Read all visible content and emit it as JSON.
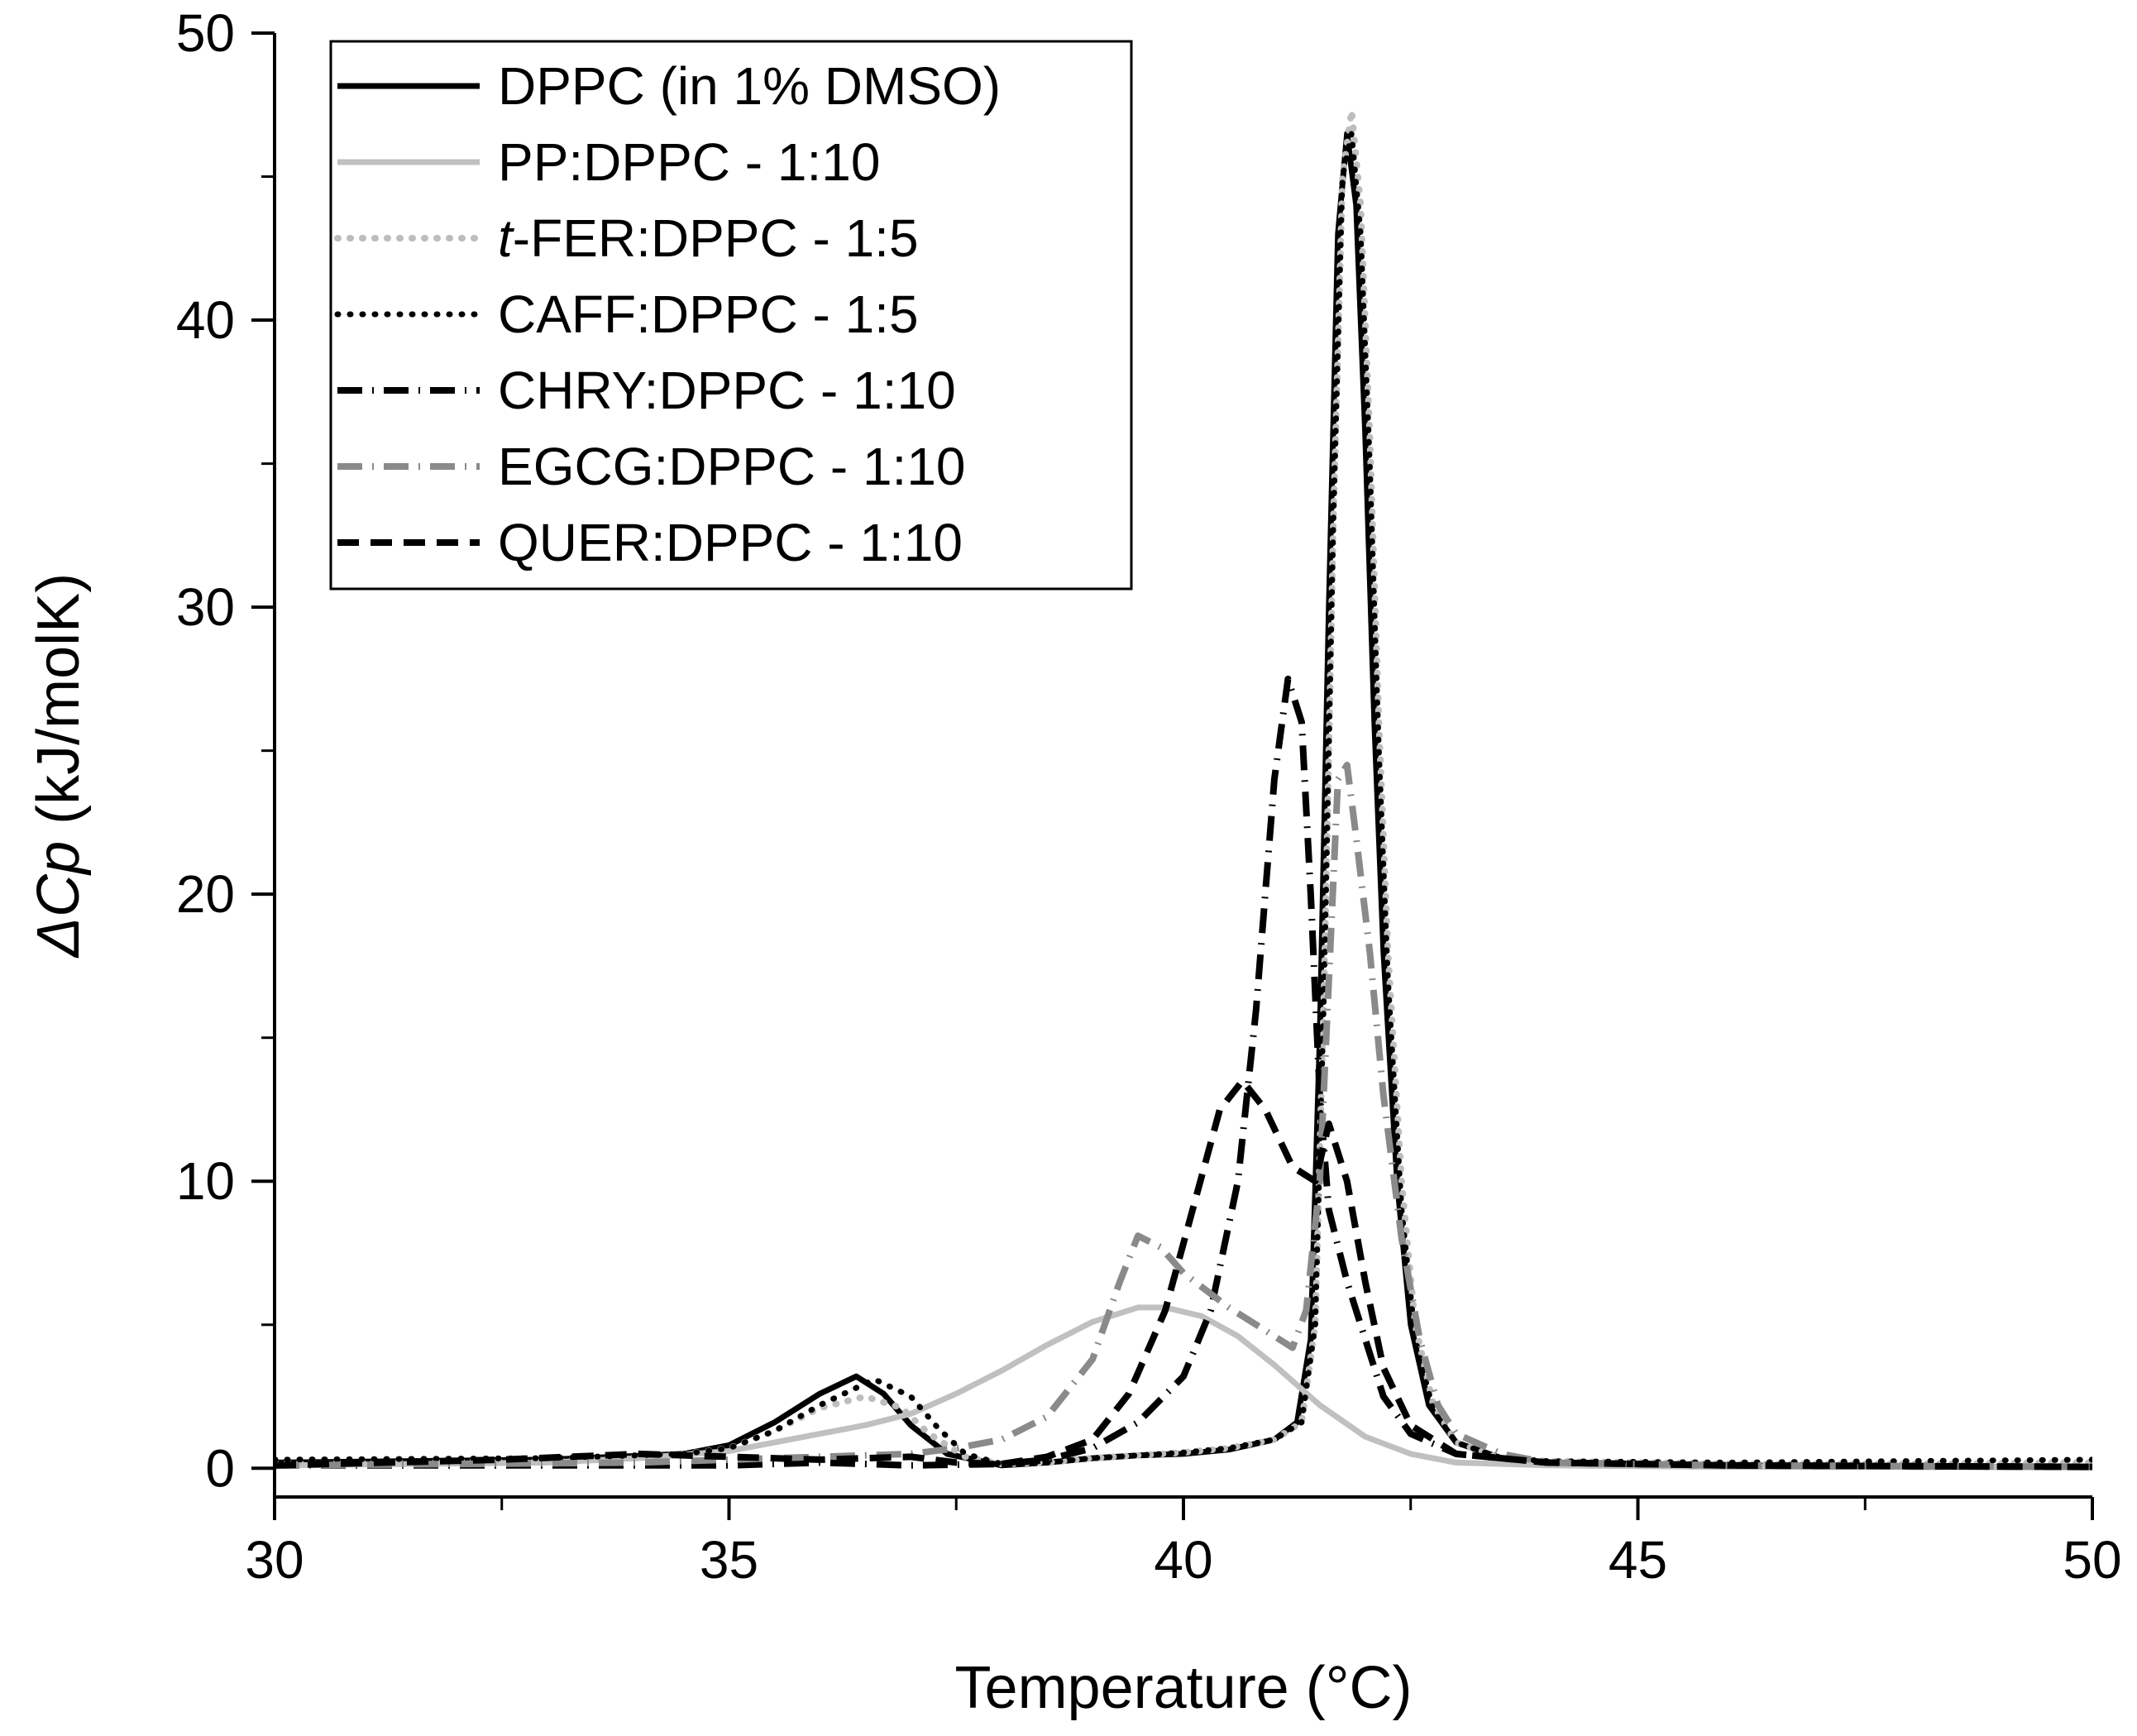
{
  "chart_data": {
    "type": "line",
    "title": "",
    "xlabel": "Temperature (°C)",
    "ylabel_symbol": "ΔCp",
    "ylabel_unit": " (kJ/molK)",
    "xlim": [
      30,
      50
    ],
    "ylim": [
      -1,
      50
    ],
    "xticks": [
      30,
      35,
      40,
      45,
      50
    ],
    "xtick_labels": [
      "30",
      "35",
      "40",
      "45",
      "50"
    ],
    "yticks": [
      0,
      10,
      20,
      30,
      40,
      50
    ],
    "ytick_labels": [
      "0",
      "10",
      "20",
      "30",
      "40",
      "50"
    ],
    "grid": false,
    "legend_position": "top-left",
    "series": [
      {
        "name": "DPPC (in 1% DMSO)",
        "color": "#000000",
        "dash": "solid",
        "width": 7,
        "points": [
          [
            30,
            0.2
          ],
          [
            33,
            0.3
          ],
          [
            34.5,
            0.5
          ],
          [
            35,
            0.8
          ],
          [
            35.5,
            1.6
          ],
          [
            36,
            2.6
          ],
          [
            36.4,
            3.2
          ],
          [
            36.7,
            2.6
          ],
          [
            37,
            1.5
          ],
          [
            37.4,
            0.5
          ],
          [
            38,
            0.1
          ],
          [
            38.5,
            0.2
          ],
          [
            39,
            0.35
          ],
          [
            39.5,
            0.45
          ],
          [
            40,
            0.5
          ],
          [
            40.5,
            0.65
          ],
          [
            41,
            1.0
          ],
          [
            41.25,
            1.6
          ],
          [
            41.4,
            4.5
          ],
          [
            41.5,
            15
          ],
          [
            41.6,
            30
          ],
          [
            41.7,
            43
          ],
          [
            41.8,
            46.5
          ],
          [
            41.9,
            44
          ],
          [
            42,
            36
          ],
          [
            42.1,
            26
          ],
          [
            42.2,
            18
          ],
          [
            42.35,
            10
          ],
          [
            42.5,
            5
          ],
          [
            42.7,
            2.2
          ],
          [
            43,
            0.9
          ],
          [
            43.5,
            0.35
          ],
          [
            44,
            0.2
          ],
          [
            46,
            0.1
          ],
          [
            48,
            0.05
          ],
          [
            50,
            0.05
          ]
        ]
      },
      {
        "name": "PP:DPPC - 1:10",
        "color": "#c0c0c0",
        "dash": "solid",
        "width": 7,
        "points": [
          [
            30,
            0.1
          ],
          [
            33,
            0.2
          ],
          [
            34,
            0.35
          ],
          [
            35,
            0.6
          ],
          [
            35.5,
            0.9
          ],
          [
            36,
            1.2
          ],
          [
            36.5,
            1.5
          ],
          [
            37,
            1.9
          ],
          [
            37.5,
            2.6
          ],
          [
            38,
            3.4
          ],
          [
            38.5,
            4.3
          ],
          [
            39,
            5.1
          ],
          [
            39.5,
            5.6
          ],
          [
            39.8,
            5.6
          ],
          [
            40.2,
            5.3
          ],
          [
            40.6,
            4.6
          ],
          [
            41,
            3.6
          ],
          [
            41.5,
            2.2
          ],
          [
            42,
            1.1
          ],
          [
            42.5,
            0.5
          ],
          [
            43,
            0.2
          ],
          [
            44,
            0.1
          ],
          [
            46,
            0.05
          ],
          [
            50,
            0.05
          ]
        ]
      },
      {
        "name": "t-FER:DPPC - 1:5",
        "name_prefix": "t",
        "name_rest": "-FER:DPPC - 1:5",
        "color": "#bdbdbd",
        "dash": "dotted",
        "width": 8,
        "points": [
          [
            30,
            0.2
          ],
          [
            33,
            0.3
          ],
          [
            34.5,
            0.5
          ],
          [
            35,
            0.7
          ],
          [
            35.5,
            1.3
          ],
          [
            36,
            2.1
          ],
          [
            36.5,
            2.5
          ],
          [
            36.9,
            2.1
          ],
          [
            37.2,
            1.2
          ],
          [
            37.6,
            0.4
          ],
          [
            38,
            0.15
          ],
          [
            38.5,
            0.2
          ],
          [
            39,
            0.35
          ],
          [
            39.5,
            0.45
          ],
          [
            40,
            0.55
          ],
          [
            40.5,
            0.7
          ],
          [
            41,
            1.0
          ],
          [
            41.3,
            1.6
          ],
          [
            41.45,
            5
          ],
          [
            41.55,
            17
          ],
          [
            41.65,
            33
          ],
          [
            41.75,
            45
          ],
          [
            41.85,
            47.3
          ],
          [
            41.95,
            44
          ],
          [
            42.05,
            36
          ],
          [
            42.15,
            26
          ],
          [
            42.25,
            18
          ],
          [
            42.4,
            10
          ],
          [
            42.55,
            5
          ],
          [
            42.75,
            2.2
          ],
          [
            43,
            0.9
          ],
          [
            43.5,
            0.35
          ],
          [
            44,
            0.25
          ],
          [
            46,
            0.15
          ],
          [
            48,
            0.15
          ],
          [
            50,
            0.2
          ]
        ]
      },
      {
        "name": "CAFF:DPPC - 1:5",
        "color": "#000000",
        "dash": "dotted",
        "width": 7,
        "points": [
          [
            30,
            0.3
          ],
          [
            33,
            0.35
          ],
          [
            34.5,
            0.5
          ],
          [
            35,
            0.7
          ],
          [
            35.5,
            1.3
          ],
          [
            36,
            2.2
          ],
          [
            36.6,
            3.1
          ],
          [
            37,
            2.5
          ],
          [
            37.3,
            1.4
          ],
          [
            37.6,
            0.5
          ],
          [
            38,
            0.15
          ],
          [
            38.5,
            0.2
          ],
          [
            39,
            0.35
          ],
          [
            39.5,
            0.45
          ],
          [
            40,
            0.55
          ],
          [
            40.5,
            0.7
          ],
          [
            41,
            1.0
          ],
          [
            41.3,
            1.6
          ],
          [
            41.45,
            5
          ],
          [
            41.55,
            17
          ],
          [
            41.65,
            33
          ],
          [
            41.75,
            45
          ],
          [
            41.85,
            46.5
          ],
          [
            41.95,
            43
          ],
          [
            42.05,
            35
          ],
          [
            42.15,
            25
          ],
          [
            42.25,
            17
          ],
          [
            42.4,
            9
          ],
          [
            42.55,
            4.5
          ],
          [
            42.75,
            2
          ],
          [
            43,
            0.9
          ],
          [
            43.5,
            0.35
          ],
          [
            44,
            0.25
          ],
          [
            46,
            0.2
          ],
          [
            48,
            0.25
          ],
          [
            50,
            0.3
          ]
        ]
      },
      {
        "name": "CHRY:DPPC - 1:10",
        "color": "#000000",
        "dash": "dashdot",
        "width": 8,
        "points": [
          [
            30,
            0.1
          ],
          [
            33,
            0.1
          ],
          [
            35,
            0.1
          ],
          [
            36,
            0.2
          ],
          [
            37,
            0.1
          ],
          [
            38,
            0.15
          ],
          [
            38.5,
            0.3
          ],
          [
            39,
            0.7
          ],
          [
            39.5,
            1.6
          ],
          [
            40,
            3.2
          ],
          [
            40.3,
            5.5
          ],
          [
            40.6,
            10
          ],
          [
            40.8,
            16
          ],
          [
            41,
            24
          ],
          [
            41.15,
            27.5
          ],
          [
            41.3,
            26
          ],
          [
            41.4,
            20
          ],
          [
            41.5,
            13
          ],
          [
            41.6,
            9
          ],
          [
            41.8,
            6.5
          ],
          [
            42,
            4.5
          ],
          [
            42.2,
            2.5
          ],
          [
            42.5,
            1.2
          ],
          [
            43,
            0.5
          ],
          [
            44,
            0.2
          ],
          [
            46,
            0.1
          ],
          [
            50,
            0.05
          ]
        ]
      },
      {
        "name": "EGCG:DPPC - 1:10",
        "color": "#8a8a8a",
        "dash": "dashdot",
        "width": 8,
        "points": [
          [
            30,
            0.1
          ],
          [
            34,
            0.2
          ],
          [
            35,
            0.3
          ],
          [
            36,
            0.4
          ],
          [
            37,
            0.5
          ],
          [
            37.5,
            0.7
          ],
          [
            38,
            1.0
          ],
          [
            38.5,
            1.8
          ],
          [
            39,
            3.8
          ],
          [
            39.3,
            6.5
          ],
          [
            39.5,
            8.1
          ],
          [
            39.75,
            7.7
          ],
          [
            40,
            6.8
          ],
          [
            40.5,
            5.6
          ],
          [
            41,
            4.6
          ],
          [
            41.2,
            4.2
          ],
          [
            41.35,
            5.5
          ],
          [
            41.5,
            10
          ],
          [
            41.6,
            17
          ],
          [
            41.7,
            24
          ],
          [
            41.8,
            24.5
          ],
          [
            41.9,
            22
          ],
          [
            42.05,
            18
          ],
          [
            42.2,
            13
          ],
          [
            42.4,
            8
          ],
          [
            42.6,
            4.5
          ],
          [
            42.8,
            2.2
          ],
          [
            43,
            1.2
          ],
          [
            43.5,
            0.5
          ],
          [
            44,
            0.2
          ],
          [
            46,
            0.1
          ],
          [
            50,
            0.05
          ]
        ]
      },
      {
        "name": "QUER:DPPC - 1:10",
        "color": "#000000",
        "dash": "dashed",
        "width": 8,
        "points": [
          [
            30,
            0.1
          ],
          [
            32.5,
            0.3
          ],
          [
            34,
            0.5
          ],
          [
            35,
            0.4
          ],
          [
            36,
            0.3
          ],
          [
            37,
            0.4
          ],
          [
            37.5,
            0.2
          ],
          [
            38,
            0.15
          ],
          [
            38.5,
            0.4
          ],
          [
            39,
            1.0
          ],
          [
            39.4,
            2.6
          ],
          [
            39.8,
            5.5
          ],
          [
            40.1,
            9
          ],
          [
            40.4,
            12.5
          ],
          [
            40.65,
            13.5
          ],
          [
            40.9,
            12.5
          ],
          [
            41.2,
            10.5
          ],
          [
            41.45,
            10
          ],
          [
            41.6,
            12
          ],
          [
            41.8,
            10
          ],
          [
            42,
            6.5
          ],
          [
            42.2,
            3.5
          ],
          [
            42.5,
            1.5
          ],
          [
            43,
            0.5
          ],
          [
            44,
            0.2
          ],
          [
            46,
            0.1
          ],
          [
            50,
            0.05
          ]
        ]
      }
    ]
  }
}
